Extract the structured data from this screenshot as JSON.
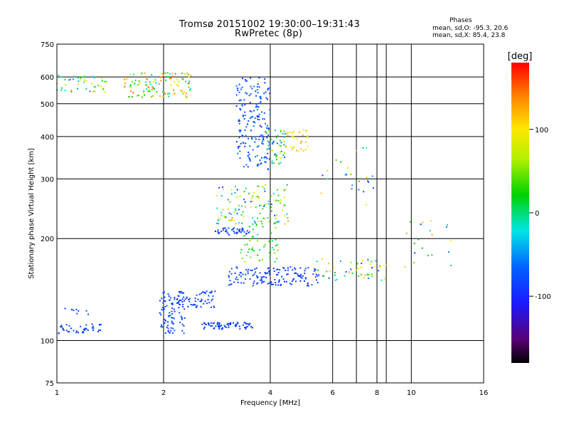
{
  "title_line1": "Tromsø 20151002 19:30:00–19:31:43",
  "title_line2": "RwPretec (8p)",
  "stats": {
    "heading": "Phases",
    "line_o": "mean, sd,O: -95.3, 20.6",
    "line_x": "mean, sd,X:  85.4, 23.8"
  },
  "colorbar": {
    "unit": "[deg]",
    "ticks": [
      {
        "value": 100,
        "label": "100"
      },
      {
        "value": 0,
        "label": "0"
      },
      {
        "value": -100,
        "label": "-100"
      }
    ],
    "range": [
      -180,
      180
    ]
  },
  "chart_data": {
    "type": "scatter",
    "xlabel": "Frequency [MHz]",
    "ylabel": "Stationary phase Virtual Height [km]",
    "xscale": "log",
    "yscale": "log",
    "xlim": [
      1,
      16
    ],
    "ylim": [
      75,
      750
    ],
    "xticks": [
      {
        "value": 1,
        "label": "1"
      },
      {
        "value": 2,
        "label": "2"
      },
      {
        "value": 4,
        "label": "4"
      },
      {
        "value": 6,
        "label": "6"
      },
      {
        "value": 8,
        "label": "8"
      },
      {
        "value": 10,
        "label": "10"
      },
      {
        "value": 16,
        "label": "16"
      }
    ],
    "xgrid": [
      2,
      4,
      6,
      8,
      10,
      7,
      8.5
    ],
    "yticks": [
      {
        "value": 750,
        "label": "750"
      },
      {
        "value": 600,
        "label": "600"
      },
      {
        "value": 500,
        "label": "500"
      },
      {
        "value": 400,
        "label": "400"
      },
      {
        "value": 300,
        "label": "300"
      },
      {
        "value": 200,
        "label": "200"
      },
      {
        "value": 100,
        "label": "100"
      },
      {
        "value": 75,
        "label": "75"
      }
    ],
    "ygrid": [
      600,
      500,
      400,
      300,
      200,
      100
    ],
    "grid": true,
    "clusters": [
      {
        "x": [
          1.0,
          1.35
        ],
        "y": [
          105,
          112
        ],
        "phase": [
          -95,
          -80
        ],
        "n": 40
      },
      {
        "x": [
          1.05,
          1.25
        ],
        "y": [
          118,
          125
        ],
        "phase": [
          -100,
          -80
        ],
        "n": 8
      },
      {
        "x": [
          1.0,
          1.4
        ],
        "y": [
          540,
          610
        ],
        "phase": [
          -60,
          130
        ],
        "n": 45
      },
      {
        "x": [
          1.55,
          2.4
        ],
        "y": [
          520,
          620
        ],
        "phase": [
          -40,
          160
        ],
        "n": 120
      },
      {
        "x": [
          1.95,
          2.3
        ],
        "y": [
          105,
          140
        ],
        "phase": [
          -100,
          -70
        ],
        "n": 90
      },
      {
        "x": [
          2.2,
          2.8
        ],
        "y": [
          125,
          140
        ],
        "phase": [
          -100,
          -80
        ],
        "n": 60
      },
      {
        "x": [
          2.55,
          3.6
        ],
        "y": [
          108,
          113
        ],
        "phase": [
          -100,
          -80
        ],
        "n": 70
      },
      {
        "x": [
          3.05,
          5.5
        ],
        "y": [
          145,
          165
        ],
        "phase": [
          -100,
          -80
        ],
        "n": 150
      },
      {
        "x": [
          2.8,
          3.5
        ],
        "y": [
          205,
          215
        ],
        "phase": [
          -100,
          -80
        ],
        "n": 40
      },
      {
        "x": [
          2.8,
          4.5
        ],
        "y": [
          220,
          290
        ],
        "phase": [
          -100,
          140
        ],
        "n": 120
      },
      {
        "x": [
          3.3,
          4.2
        ],
        "y": [
          170,
          230
        ],
        "phase": [
          -10,
          60
        ],
        "n": 60
      },
      {
        "x": [
          3.2,
          4.0
        ],
        "y": [
          320,
          600
        ],
        "phase": [
          -100,
          -60
        ],
        "n": 180
      },
      {
        "x": [
          3.9,
          4.4
        ],
        "y": [
          330,
          420
        ],
        "phase": [
          -100,
          90
        ],
        "n": 50
      },
      {
        "x": [
          4.4,
          5.2
        ],
        "y": [
          360,
          420
        ],
        "phase": [
          80,
          130
        ],
        "n": 35
      },
      {
        "x": [
          5.4,
          8.5
        ],
        "y": [
          150,
          175
        ],
        "phase": [
          -100,
          130
        ],
        "n": 50
      },
      {
        "x": [
          5.5,
          8.0
        ],
        "y": [
          250,
          380
        ],
        "phase": [
          -90,
          130
        ],
        "n": 25
      },
      {
        "x": [
          9.5,
          13.0
        ],
        "y": [
          165,
          230
        ],
        "phase": [
          -100,
          140
        ],
        "n": 20
      }
    ]
  }
}
